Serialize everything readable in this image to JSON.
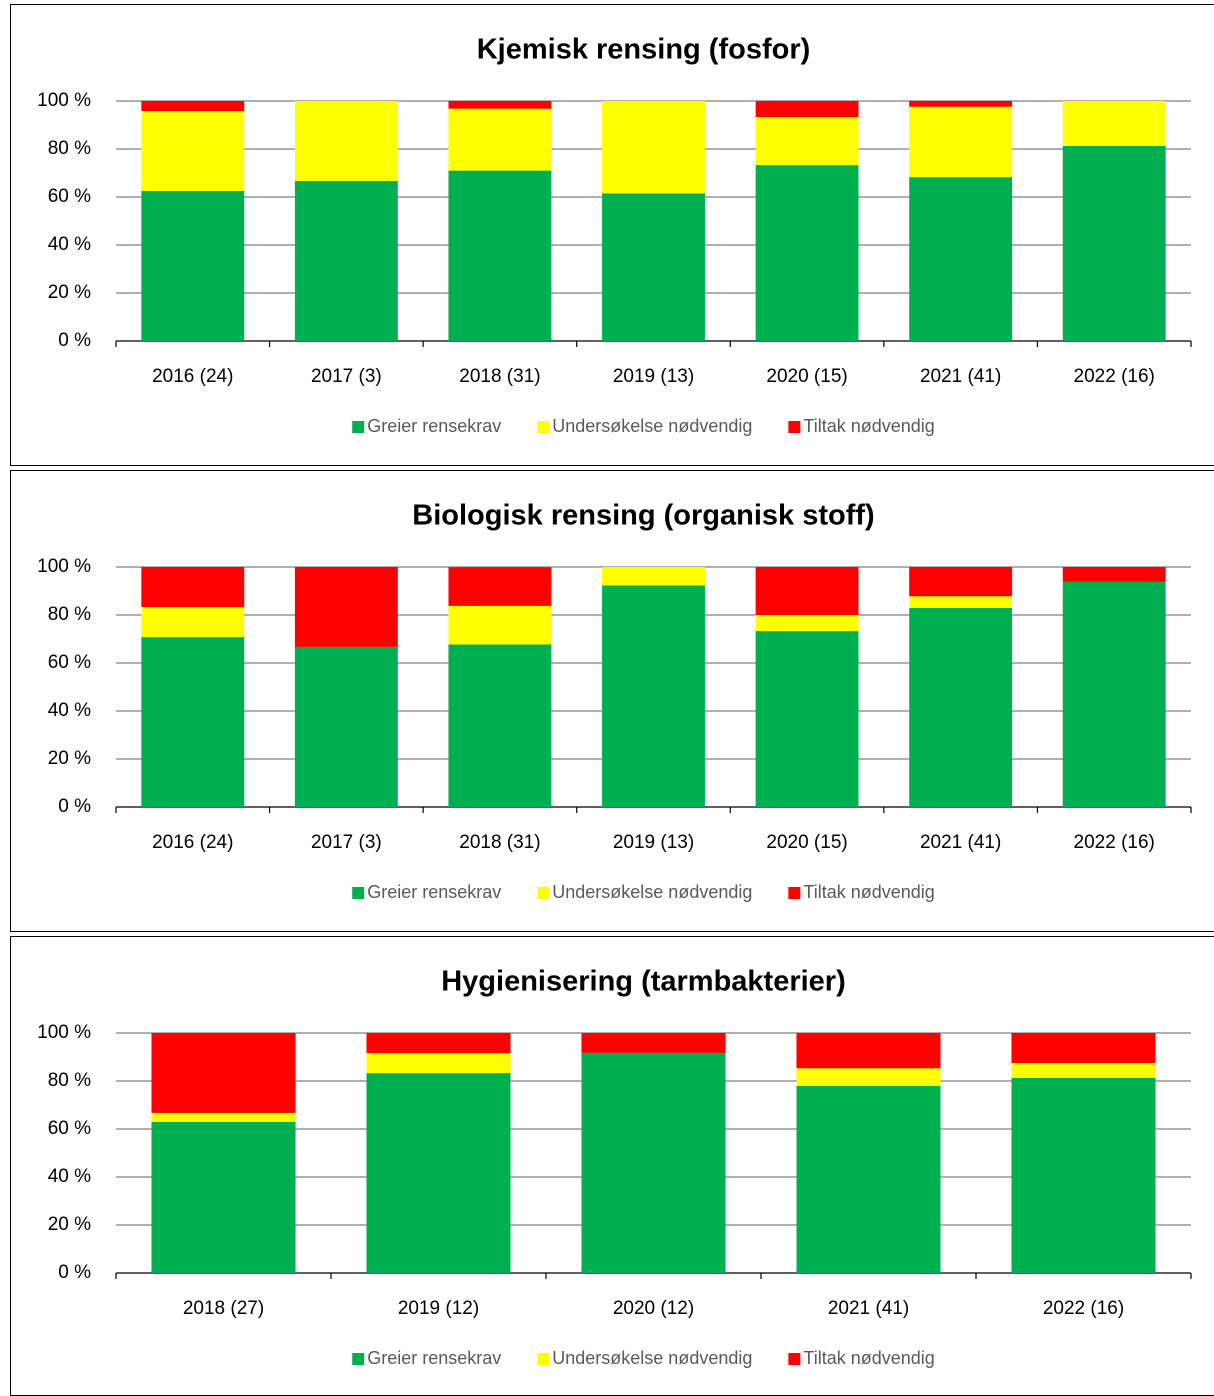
{
  "chart_data": [
    {
      "type": "bar",
      "stacked": true,
      "title": "Kjemisk rensing (fosfor)",
      "categories": [
        "2016 (24)",
        "2017 (3)",
        "2018 (31)",
        "2019 (13)",
        "2020 (15)",
        "2021 (41)",
        "2022 (16)"
      ],
      "series": [
        {
          "name": "Greier rensekrav",
          "color": "#00b050",
          "values": [
            62.5,
            66.7,
            71.0,
            61.5,
            73.3,
            68.3,
            81.3
          ]
        },
        {
          "name": "Undersøkelse nødvendig",
          "color": "#ffff00",
          "values": [
            33.3,
            33.3,
            25.8,
            38.5,
            20.0,
            29.3,
            18.7
          ]
        },
        {
          "name": "Tiltak nødvendig",
          "color": "#ff0000",
          "values": [
            4.2,
            0,
            3.2,
            0,
            6.7,
            2.4,
            0
          ]
        }
      ],
      "ylim": [
        0,
        100
      ],
      "yticks": [
        {
          "value": 0,
          "label": "0 %"
        },
        {
          "value": 20,
          "label": "20 %"
        },
        {
          "value": 40,
          "label": "40 %"
        },
        {
          "value": 60,
          "label": "60 %"
        },
        {
          "value": 80,
          "label": "80 %"
        },
        {
          "value": 100,
          "label": "100 %"
        }
      ],
      "grid": true,
      "legend": "bottom"
    },
    {
      "type": "bar",
      "stacked": true,
      "title": "Biologisk rensing (organisk stoff)",
      "categories": [
        "2016 (24)",
        "2017 (3)",
        "2018 (31)",
        "2019 (13)",
        "2020 (15)",
        "2021 (41)",
        "2022 (16)"
      ],
      "series": [
        {
          "name": "Greier rensekrav",
          "color": "#00b050",
          "values": [
            70.8,
            66.7,
            67.7,
            92.3,
            73.3,
            82.9,
            93.8
          ]
        },
        {
          "name": "Undersøkelse nødvendig",
          "color": "#ffff00",
          "values": [
            12.5,
            0,
            16.1,
            7.7,
            6.7,
            4.9,
            0
          ]
        },
        {
          "name": "Tiltak nødvendig",
          "color": "#ff0000",
          "values": [
            16.7,
            33.3,
            16.1,
            0,
            20.0,
            12.2,
            6.2
          ]
        }
      ],
      "ylim": [
        0,
        100
      ],
      "yticks": [
        {
          "value": 0,
          "label": "0 %"
        },
        {
          "value": 20,
          "label": "20 %"
        },
        {
          "value": 40,
          "label": "40 %"
        },
        {
          "value": 60,
          "label": "60 %"
        },
        {
          "value": 80,
          "label": "80 %"
        },
        {
          "value": 100,
          "label": "100 %"
        }
      ],
      "grid": true,
      "legend": "bottom"
    },
    {
      "type": "bar",
      "stacked": true,
      "title": "Hygienisering (tarmbakterier)",
      "categories": [
        "2018 (27)",
        "2019 (12)",
        "2020 (12)",
        "2021 (41)",
        "2022 (16)"
      ],
      "series": [
        {
          "name": "Greier rensekrav",
          "color": "#00b050",
          "values": [
            63.0,
            83.3,
            91.7,
            78.0,
            81.3
          ]
        },
        {
          "name": "Undersøkelse nødvendig",
          "color": "#ffff00",
          "values": [
            3.7,
            8.3,
            0,
            7.3,
            6.2
          ]
        },
        {
          "name": "Tiltak nødvendig",
          "color": "#ff0000",
          "values": [
            33.3,
            8.4,
            8.3,
            14.7,
            12.5
          ]
        }
      ],
      "ylim": [
        0,
        100
      ],
      "yticks": [
        {
          "value": 0,
          "label": "0 %"
        },
        {
          "value": 20,
          "label": "20 %"
        },
        {
          "value": 40,
          "label": "40 %"
        },
        {
          "value": 60,
          "label": "60 %"
        },
        {
          "value": 80,
          "label": "80 %"
        },
        {
          "value": 100,
          "label": "100 %"
        }
      ],
      "grid": true,
      "legend": "bottom"
    }
  ]
}
